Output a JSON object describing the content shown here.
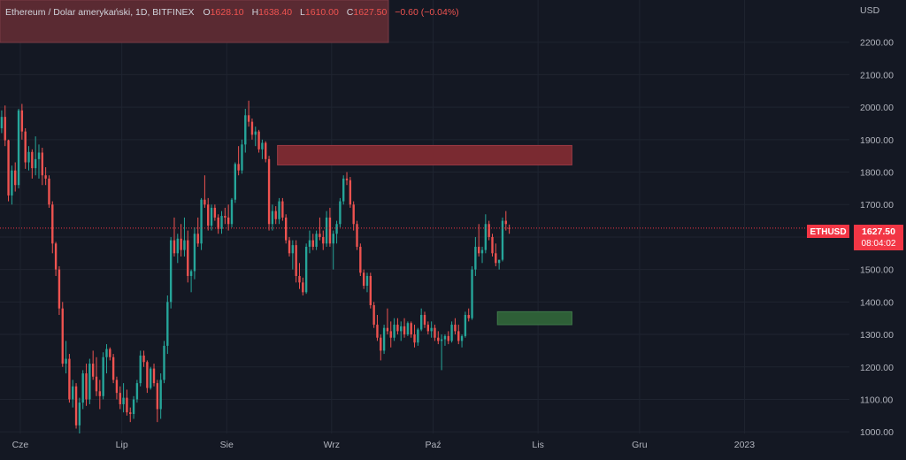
{
  "legend": {
    "symbol_name": "Ethereum / Dolar amerykański, 1D, BITFINEX",
    "open_label": "O",
    "open": "1628.10",
    "high_label": "H",
    "high": "1638.40",
    "low_label": "L",
    "low": "1610.00",
    "close_label": "C",
    "close": "1627.50",
    "change": "−0.60 (−0.04%)"
  },
  "price_badge": {
    "ticker": "ETHUSD",
    "price": "1627.50",
    "countdown": "08:04:02"
  },
  "colors": {
    "background": "#141823",
    "grid": "#1f2430",
    "axis_text": "#b2b5be",
    "up": "#26a69a",
    "down": "#ef5350",
    "badge": "#f23645",
    "supply_zone": "#7a2a31",
    "demand_zone": "#2e5f37",
    "legend_box": "#5a2a32"
  },
  "chart_data": {
    "type": "candlestick",
    "currency_label": "USD",
    "y_ticks": [
      1000,
      1100,
      1200,
      1300,
      1400,
      1500,
      1600,
      1700,
      1800,
      1900,
      2000,
      2100,
      2200
    ],
    "y_tick_labels": [
      "1000.00",
      "1100.00",
      "1200.00",
      "1300.00",
      "1400.00",
      "1500.00",
      "1600.00",
      "1700.00",
      "1800.00",
      "1900.00",
      "2000.00",
      "2100.00",
      "2200.00"
    ],
    "ylim": [
      995,
      2330
    ],
    "x_labels": [
      "Cze",
      "Lip",
      "Sie",
      "Wrz",
      "Paź",
      "Lis",
      "Gru",
      "2023"
    ],
    "x_label_days": [
      6,
      36,
      67,
      98,
      128,
      159,
      189,
      220
    ],
    "xlim_days": [
      0,
      251
    ],
    "zones": [
      {
        "kind": "supply",
        "start_day": 82,
        "end_day": 169,
        "low": 1822,
        "high": 1882
      },
      {
        "kind": "demand",
        "start_day": 147,
        "end_day": 169,
        "low": 1330,
        "high": 1370
      }
    ],
    "current_price": 1627.5,
    "candles": [
      [
        1935,
        1990,
        1920,
        1970
      ],
      [
        1970,
        2005,
        1880,
        1898
      ],
      [
        1898,
        1900,
        1710,
        1728
      ],
      [
        1728,
        1820,
        1700,
        1805
      ],
      [
        1805,
        1830,
        1740,
        1760
      ],
      [
        1760,
        1995,
        1750,
        1990
      ],
      [
        1990,
        2010,
        1900,
        1925
      ],
      [
        1925,
        1935,
        1810,
        1830
      ],
      [
        1830,
        1880,
        1805,
        1862
      ],
      [
        1862,
        1870,
        1780,
        1812
      ],
      [
        1812,
        1910,
        1790,
        1840
      ],
      [
        1840,
        1885,
        1780,
        1860
      ],
      [
        1860,
        1875,
        1760,
        1790
      ],
      [
        1790,
        1815,
        1760,
        1780
      ],
      [
        1780,
        1790,
        1690,
        1700
      ],
      [
        1700,
        1710,
        1550,
        1580
      ],
      [
        1580,
        1585,
        1480,
        1500
      ],
      [
        1500,
        1510,
        1360,
        1380
      ],
      [
        1380,
        1400,
        1200,
        1210
      ],
      [
        1210,
        1280,
        1180,
        1225
      ],
      [
        1225,
        1240,
        1090,
        1100
      ],
      [
        1100,
        1160,
        1075,
        1140
      ],
      [
        1140,
        1150,
        1010,
        1020
      ],
      [
        1020,
        1105,
        995,
        1090
      ],
      [
        1090,
        1190,
        1070,
        1180
      ],
      [
        1180,
        1210,
        1080,
        1100
      ],
      [
        1100,
        1225,
        1085,
        1210
      ],
      [
        1210,
        1250,
        1160,
        1170
      ],
      [
        1170,
        1230,
        1110,
        1125
      ],
      [
        1125,
        1160,
        1070,
        1110
      ],
      [
        1110,
        1245,
        1100,
        1230
      ],
      [
        1230,
        1270,
        1180,
        1255
      ],
      [
        1255,
        1260,
        1220,
        1230
      ],
      [
        1230,
        1240,
        1150,
        1160
      ],
      [
        1160,
        1170,
        1100,
        1120
      ],
      [
        1120,
        1140,
        1070,
        1085
      ],
      [
        1085,
        1150,
        1060,
        1105
      ],
      [
        1105,
        1130,
        1050,
        1060
      ],
      [
        1060,
        1075,
        1030,
        1055
      ],
      [
        1055,
        1110,
        1040,
        1100
      ],
      [
        1100,
        1160,
        1090,
        1150
      ],
      [
        1150,
        1250,
        1140,
        1235
      ],
      [
        1235,
        1250,
        1200,
        1215
      ],
      [
        1215,
        1220,
        1120,
        1135
      ],
      [
        1135,
        1200,
        1130,
        1195
      ],
      [
        1195,
        1210,
        1140,
        1150
      ],
      [
        1150,
        1160,
        1030,
        1070
      ],
      [
        1070,
        1180,
        1040,
        1160
      ],
      [
        1160,
        1280,
        1150,
        1265
      ],
      [
        1265,
        1420,
        1240,
        1400
      ],
      [
        1400,
        1600,
        1380,
        1590
      ],
      [
        1590,
        1660,
        1540,
        1550
      ],
      [
        1550,
        1610,
        1520,
        1595
      ],
      [
        1595,
        1640,
        1540,
        1560
      ],
      [
        1560,
        1660,
        1540,
        1590
      ],
      [
        1590,
        1620,
        1460,
        1480
      ],
      [
        1480,
        1500,
        1430,
        1495
      ],
      [
        1495,
        1630,
        1470,
        1610
      ],
      [
        1610,
        1660,
        1570,
        1580
      ],
      [
        1580,
        1720,
        1560,
        1715
      ],
      [
        1715,
        1790,
        1690,
        1700
      ],
      [
        1700,
        1720,
        1620,
        1635
      ],
      [
        1635,
        1700,
        1620,
        1690
      ],
      [
        1690,
        1700,
        1650,
        1660
      ],
      [
        1660,
        1670,
        1610,
        1625
      ],
      [
        1625,
        1680,
        1610,
        1665
      ],
      [
        1665,
        1690,
        1640,
        1660
      ],
      [
        1660,
        1700,
        1620,
        1640
      ],
      [
        1640,
        1720,
        1630,
        1715
      ],
      [
        1715,
        1830,
        1705,
        1825
      ],
      [
        1825,
        1880,
        1790,
        1805
      ],
      [
        1805,
        1900,
        1795,
        1885
      ],
      [
        1885,
        1995,
        1860,
        1975
      ],
      [
        1975,
        2020,
        1940,
        1955
      ],
      [
        1955,
        1965,
        1900,
        1915
      ],
      [
        1915,
        1940,
        1880,
        1925
      ],
      [
        1925,
        1930,
        1860,
        1870
      ],
      [
        1870,
        1900,
        1840,
        1890
      ],
      [
        1890,
        1895,
        1830,
        1840
      ],
      [
        1840,
        1850,
        1620,
        1640
      ],
      [
        1640,
        1700,
        1620,
        1680
      ],
      [
        1680,
        1695,
        1640,
        1655
      ],
      [
        1655,
        1720,
        1640,
        1710
      ],
      [
        1710,
        1720,
        1650,
        1660
      ],
      [
        1660,
        1670,
        1580,
        1590
      ],
      [
        1590,
        1600,
        1540,
        1550
      ],
      [
        1550,
        1590,
        1500,
        1575
      ],
      [
        1575,
        1590,
        1460,
        1480
      ],
      [
        1480,
        1520,
        1440,
        1460
      ],
      [
        1460,
        1475,
        1420,
        1430
      ],
      [
        1430,
        1580,
        1425,
        1570
      ],
      [
        1570,
        1620,
        1550,
        1590
      ],
      [
        1590,
        1610,
        1560,
        1570
      ],
      [
        1570,
        1620,
        1560,
        1610
      ],
      [
        1610,
        1660,
        1590,
        1600
      ],
      [
        1600,
        1620,
        1560,
        1580
      ],
      [
        1580,
        1680,
        1570,
        1660
      ],
      [
        1660,
        1690,
        1570,
        1580
      ],
      [
        1580,
        1620,
        1500,
        1610
      ],
      [
        1610,
        1650,
        1580,
        1640
      ],
      [
        1640,
        1720,
        1630,
        1710
      ],
      [
        1710,
        1790,
        1700,
        1780
      ],
      [
        1780,
        1800,
        1760,
        1775
      ],
      [
        1775,
        1785,
        1690,
        1700
      ],
      [
        1700,
        1710,
        1620,
        1640
      ],
      [
        1640,
        1650,
        1560,
        1570
      ],
      [
        1570,
        1580,
        1480,
        1490
      ],
      [
        1490,
        1500,
        1440,
        1450
      ],
      [
        1450,
        1490,
        1430,
        1480
      ],
      [
        1480,
        1490,
        1380,
        1390
      ],
      [
        1390,
        1400,
        1320,
        1330
      ],
      [
        1330,
        1360,
        1280,
        1290
      ],
      [
        1290,
        1300,
        1220,
        1250
      ],
      [
        1250,
        1330,
        1240,
        1320
      ],
      [
        1320,
        1380,
        1300,
        1310
      ],
      [
        1310,
        1340,
        1260,
        1290
      ],
      [
        1290,
        1350,
        1280,
        1330
      ],
      [
        1330,
        1350,
        1300,
        1310
      ],
      [
        1310,
        1340,
        1280,
        1325
      ],
      [
        1325,
        1350,
        1290,
        1300
      ],
      [
        1300,
        1340,
        1295,
        1335
      ],
      [
        1335,
        1340,
        1290,
        1300
      ],
      [
        1300,
        1330,
        1260,
        1275
      ],
      [
        1275,
        1320,
        1265,
        1315
      ],
      [
        1315,
        1380,
        1310,
        1360
      ],
      [
        1360,
        1370,
        1320,
        1330
      ],
      [
        1330,
        1340,
        1300,
        1310
      ],
      [
        1310,
        1340,
        1290,
        1320
      ],
      [
        1320,
        1330,
        1280,
        1290
      ],
      [
        1290,
        1310,
        1270,
        1280
      ],
      [
        1280,
        1300,
        1190,
        1285
      ],
      [
        1285,
        1300,
        1265,
        1295
      ],
      [
        1295,
        1310,
        1270,
        1280
      ],
      [
        1280,
        1340,
        1275,
        1330
      ],
      [
        1330,
        1350,
        1300,
        1310
      ],
      [
        1310,
        1330,
        1270,
        1280
      ],
      [
        1280,
        1300,
        1260,
        1295
      ],
      [
        1295,
        1370,
        1290,
        1360
      ],
      [
        1360,
        1380,
        1340,
        1350
      ],
      [
        1350,
        1510,
        1345,
        1500
      ],
      [
        1500,
        1600,
        1480,
        1570
      ],
      [
        1570,
        1640,
        1540,
        1550
      ],
      [
        1550,
        1570,
        1520,
        1560
      ],
      [
        1560,
        1670,
        1550,
        1640
      ],
      [
        1640,
        1650,
        1590,
        1600
      ],
      [
        1600,
        1610,
        1540,
        1550
      ],
      [
        1550,
        1580,
        1510,
        1520
      ],
      [
        1520,
        1530,
        1500,
        1530
      ],
      [
        1530,
        1660,
        1525,
        1650
      ],
      [
        1650,
        1680,
        1620,
        1640
      ],
      [
        1628.1,
        1638.4,
        1610,
        1627.5
      ]
    ]
  }
}
